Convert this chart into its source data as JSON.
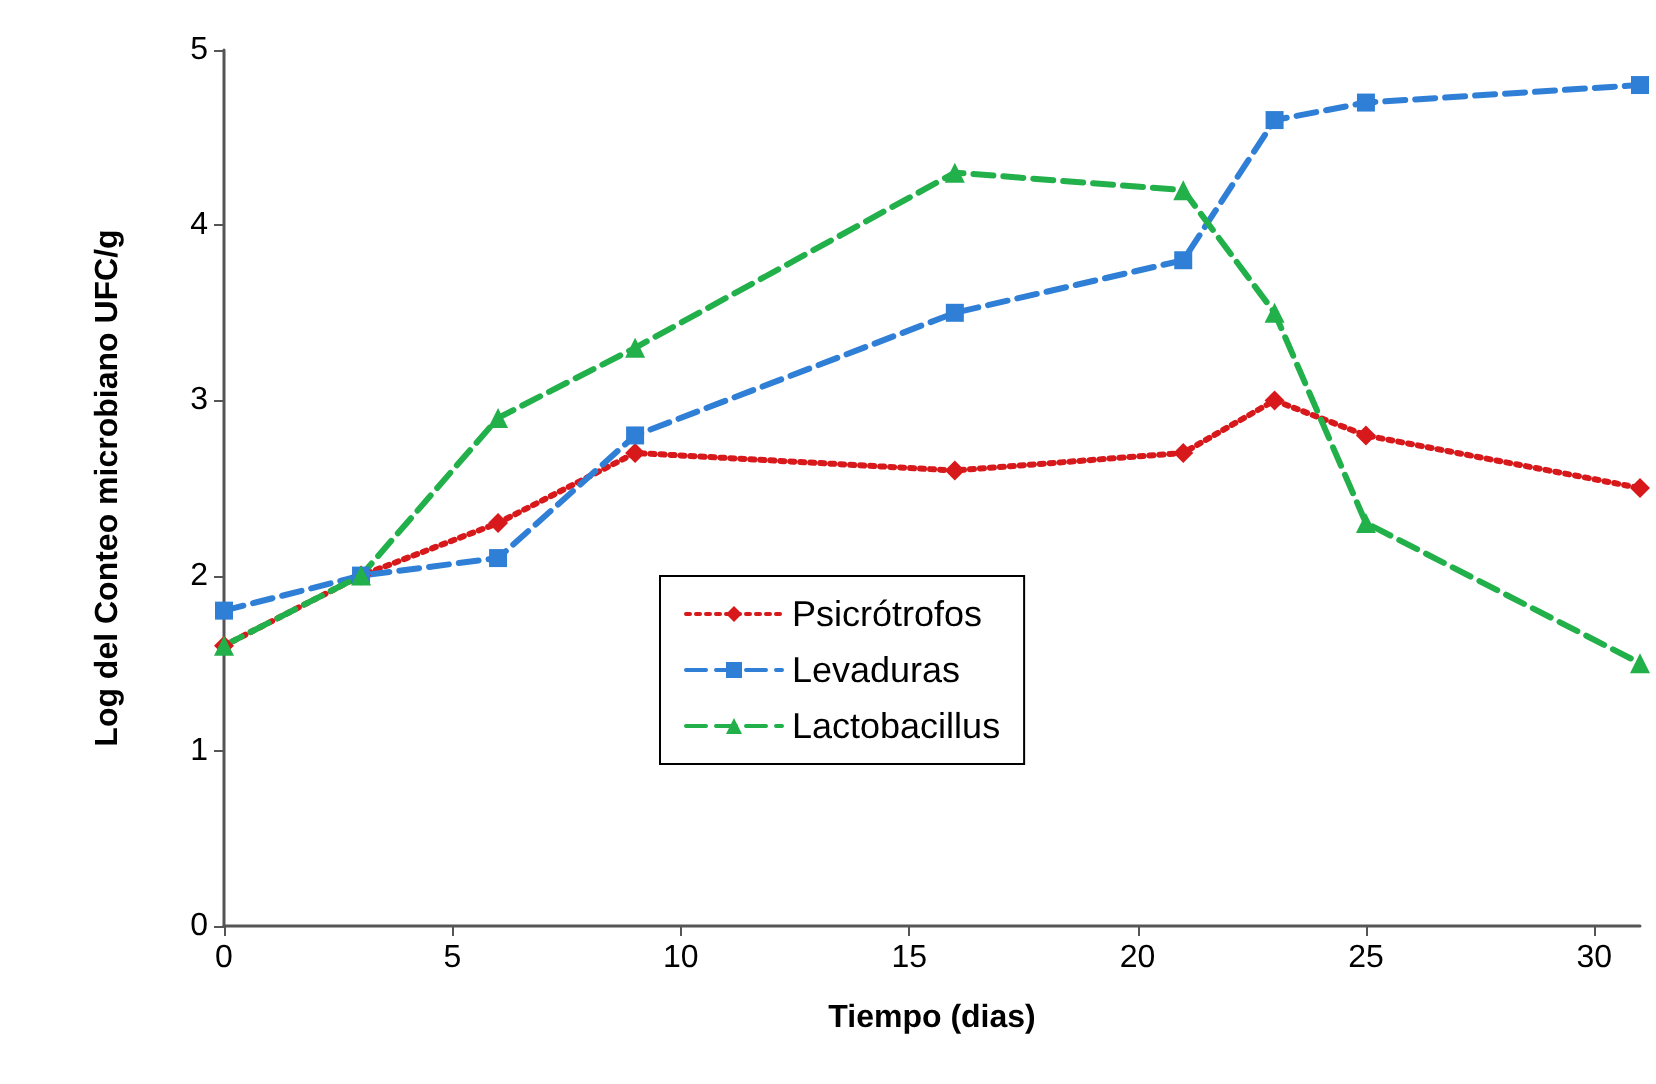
{
  "chart_data": {
    "type": "line",
    "xlabel": "Tiempo (dias)",
    "ylabel": "Log del Conteo microbiano UFC/g",
    "x": [
      0,
      3,
      6,
      9,
      16,
      21,
      23,
      25,
      31
    ],
    "xlim": [
      0,
      31
    ],
    "xticks": [
      0,
      5,
      10,
      15,
      20,
      25,
      30
    ],
    "ylim": [
      0,
      5
    ],
    "yticks": [
      0,
      1,
      2,
      3,
      4,
      5
    ],
    "grid": false,
    "legend": "center",
    "series": [
      {
        "name": "Psicrótrofos",
        "color": "#d7191c",
        "values": [
          1.6,
          2.0,
          2.3,
          2.7,
          2.6,
          2.7,
          3.0,
          2.8,
          2.5
        ],
        "marker": "diamond",
        "line_style": "dotted"
      },
      {
        "name": "Levaduras",
        "color": "#2f7fd6",
        "values": [
          1.8,
          2.0,
          2.1,
          2.8,
          3.5,
          3.8,
          4.6,
          4.7,
          4.8
        ],
        "marker": "square",
        "line_style": "dashed"
      },
      {
        "name": "Lactobacillus",
        "color": "#22b04a",
        "values": [
          1.6,
          2.0,
          2.9,
          3.3,
          4.3,
          4.2,
          3.5,
          2.3,
          1.5
        ],
        "marker": "triangle",
        "line_style": "dashed"
      }
    ]
  }
}
